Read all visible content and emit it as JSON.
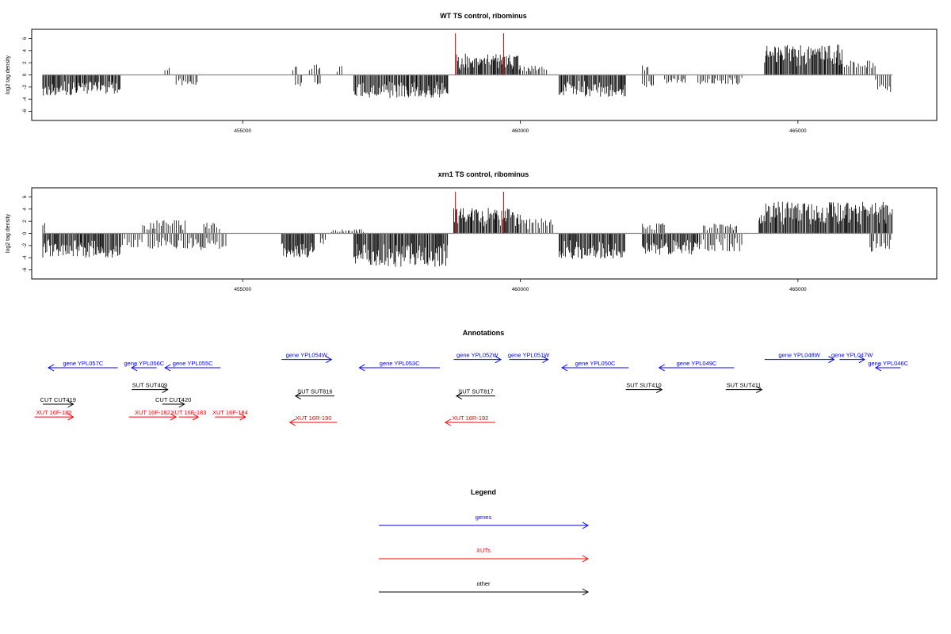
{
  "colors": {
    "gene": "#0000ff",
    "xut": "#ff0000",
    "other": "#000000",
    "zero_line": "#888888",
    "marker": "#ff0000",
    "bar": "#000000"
  },
  "chart_data": [
    {
      "type": "bar",
      "title": "WT TS control, ribominus",
      "ylabel": "log2 tag density",
      "xlim": [
        451200,
        467500
      ],
      "ylim": [
        -7.5,
        7.5
      ],
      "y_ticks": [
        "-6",
        "-4",
        "-2",
        "0",
        "2",
        "4",
        "6"
      ],
      "x_ticks": [
        "455000",
        "460000",
        "465000"
      ],
      "markers": [
        458830,
        459700
      ],
      "segments": [
        {
          "x0": 451400,
          "x1": 452000,
          "sign": -1,
          "amp": 3.4,
          "seed": 1
        },
        {
          "x0": 452000,
          "x1": 452800,
          "sign": -1,
          "amp": 3.1,
          "seed": 2
        },
        {
          "x0": 453600,
          "x1": 453700,
          "sign": 1,
          "amp": 1.3,
          "seed": 3
        },
        {
          "x0": 453800,
          "x1": 454200,
          "sign": -1,
          "amp": 1.8,
          "seed": 4
        },
        {
          "x0": 455900,
          "x1": 456000,
          "sign": 1,
          "amp": 1.5,
          "seed": 5
        },
        {
          "x0": 455950,
          "x1": 456100,
          "sign": -1,
          "amp": 2.0,
          "seed": 6
        },
        {
          "x0": 456200,
          "x1": 456400,
          "sign": 1,
          "amp": 1.8,
          "seed": 7
        },
        {
          "x0": 456300,
          "x1": 456400,
          "sign": -1,
          "amp": 1.6,
          "seed": 8
        },
        {
          "x0": 456700,
          "x1": 456800,
          "sign": 1,
          "amp": 1.6,
          "seed": 9
        },
        {
          "x0": 457000,
          "x1": 458700,
          "sign": -1,
          "amp": 3.8,
          "seed": 10
        },
        {
          "x0": 458850,
          "x1": 460000,
          "sign": 1,
          "amp": 3.5,
          "seed": 11
        },
        {
          "x0": 460000,
          "x1": 460500,
          "sign": 1,
          "amp": 1.8,
          "seed": 12
        },
        {
          "x0": 460700,
          "x1": 461900,
          "sign": -1,
          "amp": 3.6,
          "seed": 13
        },
        {
          "x0": 462200,
          "x1": 462400,
          "sign": -1,
          "amp": 2.6,
          "seed": 14
        },
        {
          "x0": 462200,
          "x1": 462300,
          "sign": 1,
          "amp": 1.8,
          "seed": 15
        },
        {
          "x0": 462600,
          "x1": 463000,
          "sign": -1,
          "amp": 1.5,
          "seed": 16
        },
        {
          "x0": 463200,
          "x1": 464000,
          "sign": -1,
          "amp": 1.6,
          "seed": 17
        },
        {
          "x0": 464400,
          "x1": 465800,
          "sign": 1,
          "amp": 5.0,
          "seed": 18
        },
        {
          "x0": 465800,
          "x1": 466400,
          "sign": 1,
          "amp": 2.4,
          "seed": 19
        },
        {
          "x0": 466400,
          "x1": 466700,
          "sign": -1,
          "amp": 2.8,
          "seed": 20
        }
      ]
    },
    {
      "type": "bar",
      "title": "xrn1 TS control, ribominus",
      "ylabel": "log2 tag density",
      "xlim": [
        451200,
        467500
      ],
      "ylim": [
        -7.5,
        7.5
      ],
      "y_ticks": [
        "-6",
        "-4",
        "-2",
        "0",
        "2",
        "4",
        "6"
      ],
      "x_ticks": [
        "455000",
        "460000",
        "465000"
      ],
      "markers": [
        458830,
        459700
      ],
      "segments": [
        {
          "x0": 451400,
          "x1": 452800,
          "sign": -1,
          "amp": 4.0,
          "seed": 31
        },
        {
          "x0": 451400,
          "x1": 451450,
          "sign": 1,
          "amp": 2.0,
          "seed": 32
        },
        {
          "x0": 452800,
          "x1": 453200,
          "sign": -1,
          "amp": 2.4,
          "seed": 33
        },
        {
          "x0": 453200,
          "x1": 454000,
          "sign": 1,
          "amp": 2.2,
          "seed": 34
        },
        {
          "x0": 453300,
          "x1": 454200,
          "sign": -1,
          "amp": 2.5,
          "seed": 35
        },
        {
          "x0": 454200,
          "x1": 454700,
          "sign": -1,
          "amp": 2.8,
          "seed": 36
        },
        {
          "x0": 454300,
          "x1": 454600,
          "sign": 1,
          "amp": 1.8,
          "seed": 37
        },
        {
          "x0": 455700,
          "x1": 456300,
          "sign": -1,
          "amp": 4.0,
          "seed": 38
        },
        {
          "x0": 456400,
          "x1": 456500,
          "sign": -1,
          "amp": 2.0,
          "seed": 39
        },
        {
          "x0": 456600,
          "x1": 457200,
          "sign": 1,
          "amp": 0.7,
          "seed": 40
        },
        {
          "x0": 457000,
          "x1": 458700,
          "sign": -1,
          "amp": 5.5,
          "seed": 41
        },
        {
          "x0": 458800,
          "x1": 460000,
          "sign": 1,
          "amp": 4.2,
          "seed": 42
        },
        {
          "x0": 460000,
          "x1": 460600,
          "sign": 1,
          "amp": 2.5,
          "seed": 43
        },
        {
          "x0": 460700,
          "x1": 461900,
          "sign": -1,
          "amp": 4.2,
          "seed": 44
        },
        {
          "x0": 462200,
          "x1": 463200,
          "sign": -1,
          "amp": 3.6,
          "seed": 45
        },
        {
          "x0": 462200,
          "x1": 462600,
          "sign": 1,
          "amp": 1.8,
          "seed": 46
        },
        {
          "x0": 463200,
          "x1": 464000,
          "sign": -1,
          "amp": 3.0,
          "seed": 47
        },
        {
          "x0": 463300,
          "x1": 463900,
          "sign": 1,
          "amp": 1.6,
          "seed": 48
        },
        {
          "x0": 464300,
          "x1": 466700,
          "sign": 1,
          "amp": 5.2,
          "seed": 49
        },
        {
          "x0": 466300,
          "x1": 466700,
          "sign": -1,
          "amp": 3.0,
          "seed": 50
        }
      ]
    }
  ],
  "annotations": {
    "title": "Annotations",
    "items": [
      {
        "label": "gene YPL057C",
        "kind": "gene",
        "x0": 451500,
        "x1": 452750,
        "dir": -1,
        "row": 0
      },
      {
        "label": "gene YPL056C",
        "kind": "gene",
        "x0": 453000,
        "x1": 453450,
        "dir": -1,
        "row": 0
      },
      {
        "label": "gene YPL055C",
        "kind": "gene",
        "x0": 453600,
        "x1": 454600,
        "dir": -1,
        "row": 0
      },
      {
        "label": "gene YPL054W",
        "kind": "gene",
        "x0": 455700,
        "x1": 456600,
        "dir": 1,
        "row": -0.45
      },
      {
        "label": "gene YPL053C",
        "kind": "gene",
        "x0": 457100,
        "x1": 458550,
        "dir": -1,
        "row": 0
      },
      {
        "label": "gene YPL052W",
        "kind": "gene",
        "x0": 458800,
        "x1": 459650,
        "dir": 1,
        "row": -0.45
      },
      {
        "label": "gene YPL051W",
        "kind": "gene",
        "x0": 459800,
        "x1": 460500,
        "dir": 1,
        "row": -0.45
      },
      {
        "label": "gene YPL050C",
        "kind": "gene",
        "x0": 460750,
        "x1": 461950,
        "dir": -1,
        "row": 0
      },
      {
        "label": "gene YPL049C",
        "kind": "gene",
        "x0": 462500,
        "x1": 463850,
        "dir": -1,
        "row": 0
      },
      {
        "label": "gene YPL048W",
        "kind": "gene",
        "x0": 464400,
        "x1": 465650,
        "dir": 1,
        "row": -0.45
      },
      {
        "label": "gene YPL047W",
        "kind": "gene",
        "x0": 465750,
        "x1": 466200,
        "dir": 1,
        "row": -0.45
      },
      {
        "label": "gene YPL046C",
        "kind": "gene",
        "x0": 466400,
        "x1": 466850,
        "dir": -1,
        "row": 0
      },
      {
        "label": "SUT SUT409",
        "kind": "other",
        "x0": 453000,
        "x1": 453650,
        "dir": 1,
        "row": 1.2
      },
      {
        "label": "SUT SUT816",
        "kind": "other",
        "x0": 455950,
        "x1": 456650,
        "dir": -1,
        "row": 1.55
      },
      {
        "label": "SUT SUT817",
        "kind": "other",
        "x0": 458850,
        "x1": 459550,
        "dir": -1,
        "row": 1.55
      },
      {
        "label": "SUT SUT410",
        "kind": "other",
        "x0": 461900,
        "x1": 462550,
        "dir": 1,
        "row": 1.2
      },
      {
        "label": "SUT SUT411",
        "kind": "other",
        "x0": 463700,
        "x1": 464350,
        "dir": 1,
        "row": 1.2
      },
      {
        "label": "CUT CUT419",
        "kind": "other",
        "x0": 451400,
        "x1": 451950,
        "dir": 1,
        "row": 2.0
      },
      {
        "label": "CUT CUT420",
        "kind": "other",
        "x0": 453550,
        "x1": 453950,
        "dir": 1,
        "row": 2.0
      },
      {
        "label": "XUT 16F-180",
        "kind": "xut",
        "x0": 451250,
        "x1": 451950,
        "dir": 1,
        "row": 2.7
      },
      {
        "label": "XUT 16F-182",
        "kind": "xut",
        "x0": 452950,
        "x1": 453800,
        "dir": 1,
        "row": 2.7
      },
      {
        "label": "XUT 16F-183",
        "kind": "xut",
        "x0": 453850,
        "x1": 454200,
        "dir": 1,
        "row": 2.7
      },
      {
        "label": "XUT 16F-184",
        "kind": "xut",
        "x0": 454500,
        "x1": 455050,
        "dir": 1,
        "row": 2.7
      },
      {
        "label": "XUT 16R-190",
        "kind": "xut",
        "x0": 455850,
        "x1": 456700,
        "dir": -1,
        "row": 3.0
      },
      {
        "label": "XUT 16R-192",
        "kind": "xut",
        "x0": 458650,
        "x1": 459550,
        "dir": -1,
        "row": 3.0
      }
    ]
  },
  "legend": {
    "title": "Legend",
    "items": [
      {
        "label": "genes",
        "kind": "gene"
      },
      {
        "label": "XUTs",
        "kind": "xut"
      },
      {
        "label": "other",
        "kind": "other"
      }
    ]
  }
}
